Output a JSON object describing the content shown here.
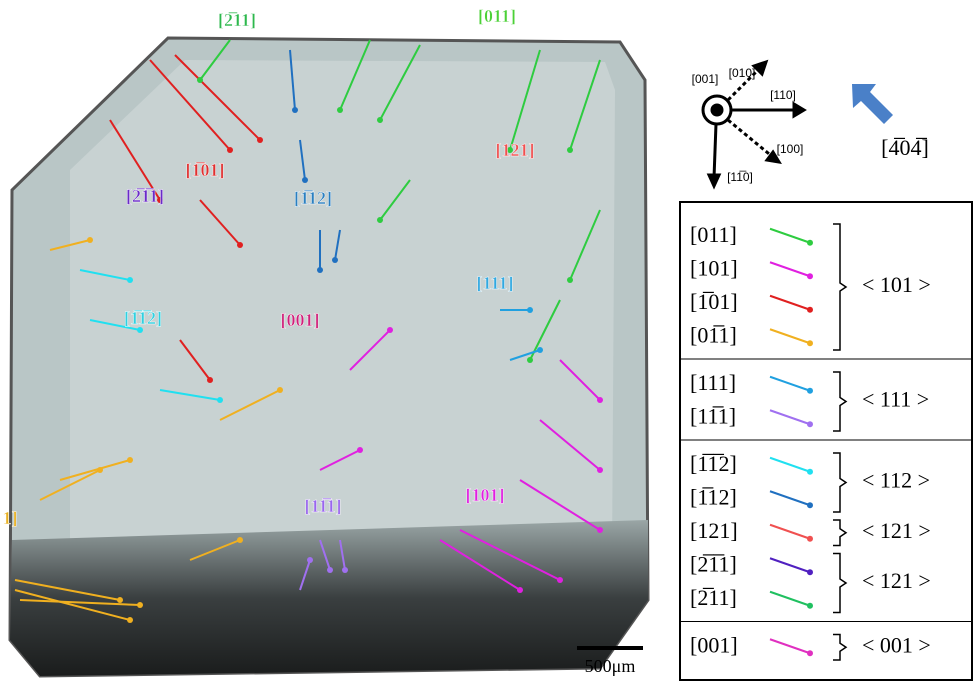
{
  "image_labels": [
    {
      "text": "[2̅11]",
      "color": "#2db84d"
    },
    {
      "text": "[011]",
      "color": "#4cd137"
    },
    {
      "text": "[1̅01]",
      "color": "#e03030"
    },
    {
      "text": "[2̅1̅1]",
      "color": "#6a2bc8"
    },
    {
      "text": "[1̅12]",
      "color": "#2a7fc0"
    },
    {
      "text": "[121]",
      "color": "#f05050"
    },
    {
      "text": "[111]",
      "color": "#30a8e0"
    },
    {
      "text": "[1̅1̅2]",
      "color": "#30d0e0"
    },
    {
      "text": "[001]",
      "color": "#d0207a"
    },
    {
      "text": "1]",
      "color": "#e8b020"
    },
    {
      "text": "[11̅1]",
      "color": "#9966ee"
    },
    {
      "text": "[101]",
      "color": "#e020e0"
    }
  ],
  "scale_bar": "500μm",
  "orientation": {
    "axes": [
      "[010]",
      "[001]",
      "[110]",
      "[100]",
      "[11̅0]"
    ],
    "view": "[4̅04̅]"
  },
  "legend": {
    "sections": [
      [
        {
          "family": "< 101 >",
          "entries": [
            {
              "label": "[011]",
              "color": "#2ecc40"
            },
            {
              "label": "[101]",
              "color": "#e020e0"
            },
            {
              "label": "[1̅01]",
              "color": "#e02020"
            },
            {
              "label": "[01̅1]",
              "color": "#f0b020"
            }
          ]
        }
      ],
      [
        {
          "family": "< 111 >",
          "entries": [
            {
              "label": "[111]",
              "color": "#20a0e0"
            },
            {
              "label": "[11̅1]",
              "color": "#a070f0"
            }
          ]
        }
      ],
      [
        {
          "family": "< 112 >",
          "entries": [
            {
              "label": "[1̅1̅2]",
              "color": "#20e0f0"
            },
            {
              "label": "[1̅12]",
              "color": "#2070c0"
            }
          ]
        },
        {
          "family": "< 121 >",
          "entries": [
            {
              "label": "[121]",
              "color": "#f05050"
            }
          ]
        },
        {
          "family": "< 121 >",
          "entries": [
            {
              "label": "[2̅1̅1]",
              "color": "#5020c0"
            },
            {
              "label": "[2̅11]",
              "color": "#20c060"
            }
          ]
        }
      ],
      [
        {
          "family": "< 001 >",
          "entries": [
            {
              "label": "[001]",
              "color": "#e030c0"
            }
          ]
        }
      ]
    ]
  }
}
